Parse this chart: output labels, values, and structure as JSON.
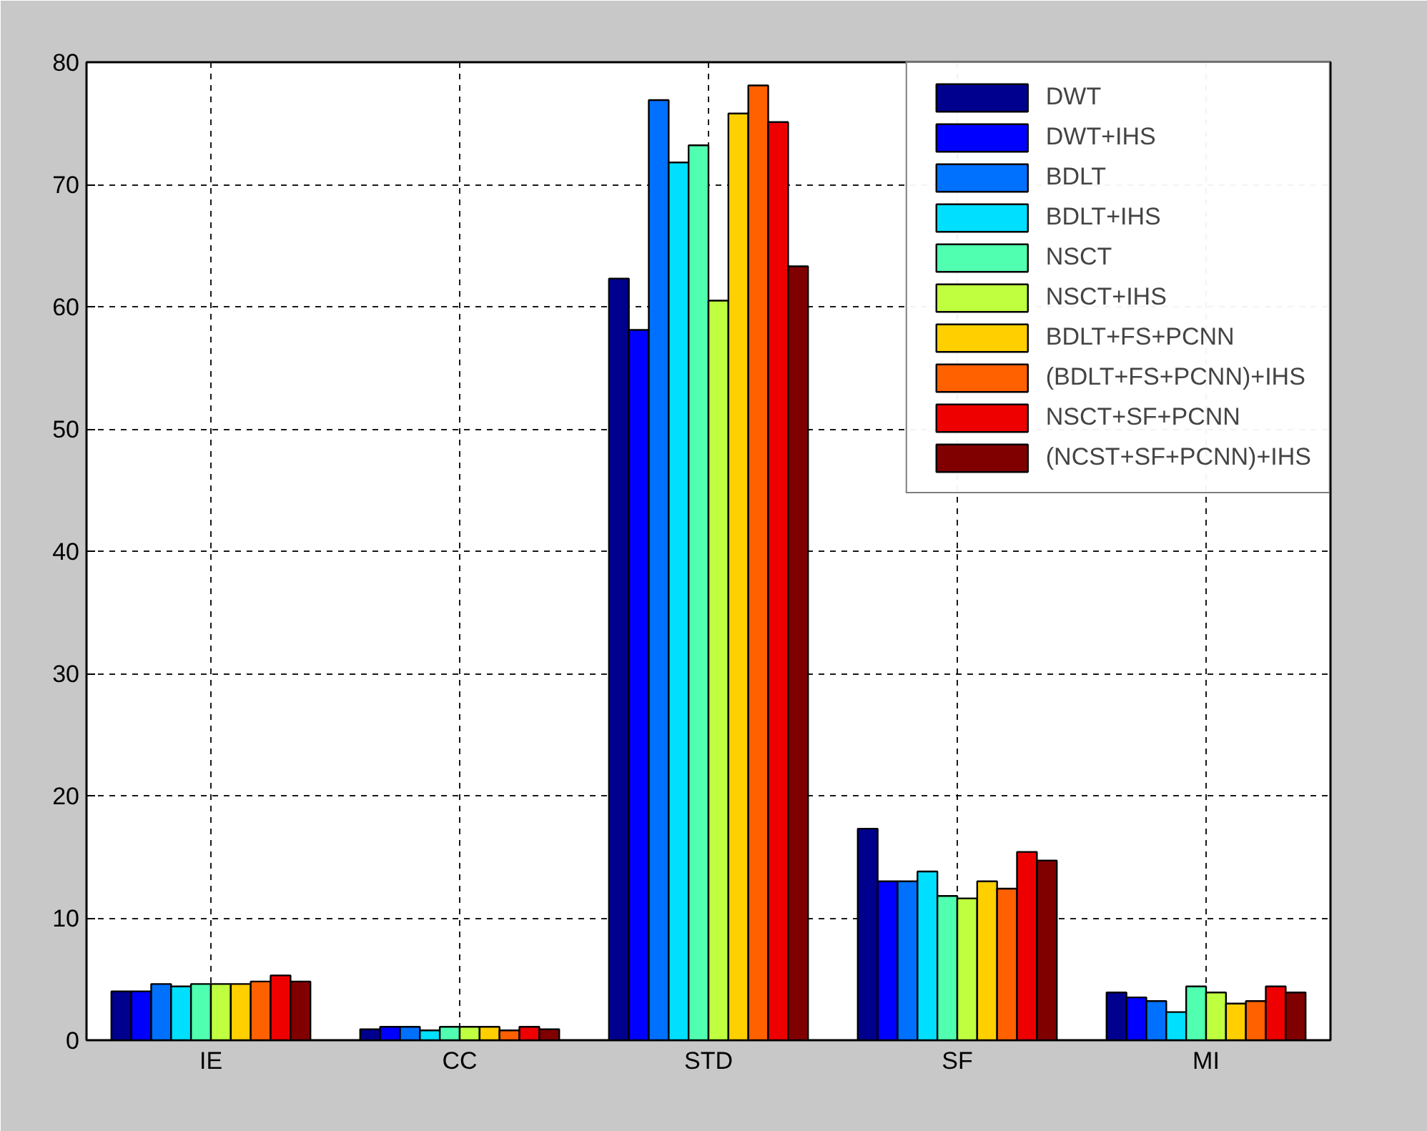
{
  "chart_data": {
    "type": "bar",
    "categories": [
      "IE",
      "CC",
      "STD",
      "SF",
      "MI"
    ],
    "ylim": [
      0,
      80
    ],
    "yticks": [
      0,
      10,
      20,
      30,
      40,
      50,
      60,
      70,
      80
    ],
    "grid": true,
    "legend": "top right",
    "series": [
      {
        "name": "DWT",
        "color": "#00008f",
        "values": [
          4.0,
          0.9,
          62.3,
          17.3,
          3.9
        ]
      },
      {
        "name": "DWT+IHS",
        "color": "#0000ff",
        "values": [
          4.0,
          1.1,
          58.1,
          13.0,
          3.5
        ]
      },
      {
        "name": "BDLT",
        "color": "#0070ff",
        "values": [
          4.6,
          1.1,
          76.9,
          13.0,
          3.2
        ]
      },
      {
        "name": "BDLT+IHS",
        "color": "#00dfff",
        "values": [
          4.4,
          0.8,
          71.8,
          13.8,
          2.3
        ]
      },
      {
        "name": "NSCT",
        "color": "#50ffaf",
        "values": [
          4.6,
          1.1,
          73.2,
          11.8,
          4.4
        ]
      },
      {
        "name": "NSCT+IHS",
        "color": "#bfff40",
        "values": [
          4.6,
          1.1,
          60.5,
          11.6,
          3.9
        ]
      },
      {
        "name": "BDLT+FS+PCNN",
        "color": "#ffcf00",
        "values": [
          4.6,
          1.1,
          75.8,
          13.0,
          3.0
        ]
      },
      {
        "name": "(BDLT+FS+PCNN)+IHS",
        "color": "#ff6000",
        "values": [
          4.8,
          0.8,
          78.1,
          12.4,
          3.2
        ]
      },
      {
        "name": "NSCT+SF+PCNN",
        "color": "#ef0000",
        "values": [
          5.3,
          1.1,
          75.1,
          15.4,
          4.4
        ]
      },
      {
        "name": "(NCST+SF+PCNN)+IHS",
        "color": "#800000",
        "values": [
          4.8,
          0.9,
          63.3,
          14.7,
          3.9
        ]
      }
    ]
  }
}
